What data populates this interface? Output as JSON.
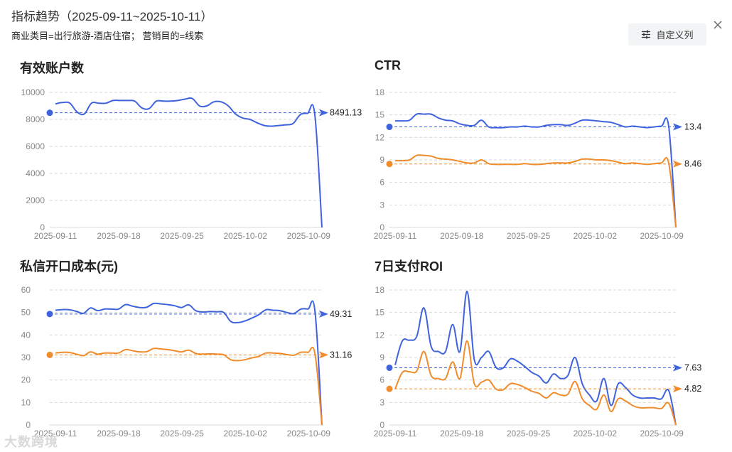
{
  "header": {
    "title": "指标趋势（2025-09-11~2025-10-11）",
    "subtitle": "商业类目=出行旅游-酒店住宿； 营销目的=线索",
    "custom_columns_label": "自定义列",
    "settings_icon": "sliders-icon",
    "close_icon": "close-icon"
  },
  "watermark": "大数跨境",
  "colors": {
    "blue": "#3e63dd",
    "orange": "#f08c2b",
    "grid": "#d9d9d9",
    "axis_text": "#888888"
  },
  "chart_data": [
    {
      "type": "line",
      "title": "有效账户数",
      "x_ticks": [
        "2025-09-11",
        "2025-09-18",
        "2025-09-25",
        "2025-10-02",
        "2025-10-09"
      ],
      "ylim": [
        0,
        10000
      ],
      "y_ticks": [
        0,
        2000,
        4000,
        6000,
        8000,
        10000
      ],
      "grid": true,
      "series": [
        {
          "color": "blue",
          "values": [
            9150,
            9250,
            9200,
            8550,
            8400,
            9200,
            9200,
            9200,
            9400,
            9400,
            9400,
            9350,
            8850,
            8800,
            9350,
            9350,
            9350,
            9400,
            9500,
            9550,
            9000,
            9000,
            9300,
            9300,
            9000,
            8400,
            8100,
            8000,
            7750,
            7550,
            7500,
            7550,
            7600,
            7700,
            8350,
            8450,
            8400,
            0
          ],
          "ref_value": 8491.13,
          "ref_label": "8491.13"
        }
      ]
    },
    {
      "type": "line",
      "title": "CTR",
      "x_ticks": [
        "2025-09-11",
        "2025-09-18",
        "2025-09-25",
        "2025-10-02",
        "2025-10-09"
      ],
      "ylim": [
        0,
        18
      ],
      "y_ticks": [
        0,
        3,
        6,
        9,
        12,
        15,
        18
      ],
      "grid": true,
      "series": [
        {
          "color": "blue",
          "values": [
            14.2,
            14.2,
            14.3,
            15.1,
            15.1,
            15.1,
            14.6,
            14.3,
            14.2,
            13.8,
            13.6,
            13.6,
            14.3,
            13.4,
            13.3,
            13.3,
            13.4,
            13.4,
            13.5,
            13.4,
            13.4,
            13.6,
            13.7,
            13.7,
            13.6,
            13.9,
            14.3,
            14.3,
            14.2,
            14.1,
            14.0,
            13.7,
            13.4,
            13.5,
            13.4,
            13.3,
            13.4,
            13.5,
            13.5,
            0
          ],
          "ref_value": 13.4,
          "ref_label": "13.4"
        },
        {
          "color": "orange",
          "values": [
            8.9,
            8.9,
            9.0,
            9.6,
            9.6,
            9.5,
            9.2,
            9.1,
            9.0,
            8.8,
            8.6,
            8.6,
            9.0,
            8.5,
            8.4,
            8.4,
            8.4,
            8.4,
            8.5,
            8.4,
            8.4,
            8.5,
            8.6,
            8.6,
            8.6,
            8.8,
            9.1,
            9.1,
            9.0,
            9.0,
            8.9,
            8.7,
            8.5,
            8.6,
            8.5,
            8.4,
            8.5,
            8.6,
            8.6,
            0
          ],
          "ref_value": 8.46,
          "ref_label": "8.46"
        }
      ]
    },
    {
      "type": "line",
      "title": "私信开口成本(元)",
      "x_ticks": [
        "2025-09-11",
        "2025-09-18",
        "2025-09-25",
        "2025-10-02",
        "2025-10-09"
      ],
      "ylim": [
        0,
        60
      ],
      "y_ticks": [
        0,
        10,
        20,
        30,
        40,
        50,
        60
      ],
      "grid": true,
      "series": [
        {
          "color": "blue",
          "values": [
            51.0,
            51.3,
            51.2,
            50.5,
            49.6,
            52.0,
            50.8,
            51.5,
            51.5,
            51.5,
            53.5,
            52.8,
            52.2,
            52.3,
            54.0,
            53.8,
            53.5,
            53.0,
            52.2,
            53.4,
            50.8,
            50.2,
            50.4,
            50.3,
            50.0,
            46.0,
            45.5,
            46.2,
            47.5,
            49.0,
            51.2,
            51.0,
            50.8,
            50.0,
            49.5,
            51.5,
            51.5,
            50.8,
            0
          ],
          "ref_value": 49.31,
          "ref_label": "49.31"
        },
        {
          "color": "orange",
          "values": [
            32.0,
            32.3,
            32.2,
            31.5,
            30.8,
            32.5,
            31.5,
            32.0,
            32.0,
            32.0,
            33.5,
            33.0,
            32.5,
            32.6,
            34.0,
            33.8,
            33.5,
            33.0,
            32.5,
            33.3,
            31.8,
            31.5,
            31.6,
            31.5,
            31.2,
            29.0,
            28.6,
            29.0,
            29.8,
            30.5,
            32.0,
            32.0,
            31.8,
            31.3,
            31.0,
            32.3,
            32.3,
            31.8,
            0
          ],
          "ref_value": 31.16,
          "ref_label": "31.16"
        }
      ]
    },
    {
      "type": "line",
      "title": "7日支付ROI",
      "x_ticks": [
        "2025-09-11",
        "2025-09-18",
        "2025-09-25",
        "2025-10-02",
        "2025-10-09"
      ],
      "ylim": [
        0,
        18
      ],
      "y_ticks": [
        0,
        3,
        6,
        9,
        12,
        15,
        18
      ],
      "grid": true,
      "series": [
        {
          "color": "blue",
          "values": [
            8.0,
            11.2,
            11.3,
            11.8,
            15.6,
            10.5,
            9.8,
            9.8,
            13.4,
            9.8,
            17.8,
            8.7,
            9.0,
            9.8,
            7.7,
            7.6,
            8.8,
            8.5,
            7.8,
            7.0,
            6.5,
            5.6,
            6.8,
            6.2,
            6.6,
            9.0,
            5.5,
            4.0,
            3.2,
            6.2,
            2.6,
            5.5,
            5.0,
            4.0,
            3.6,
            3.6,
            3.6,
            3.5,
            4.6,
            0
          ],
          "ref_value": 7.63,
          "ref_label": "7.63"
        },
        {
          "color": "orange",
          "values": [
            4.8,
            7.0,
            7.1,
            7.2,
            9.8,
            6.6,
            6.2,
            6.2,
            8.4,
            6.2,
            11.2,
            5.5,
            5.7,
            6.0,
            4.8,
            4.7,
            5.5,
            5.4,
            5.0,
            4.5,
            4.2,
            3.6,
            4.3,
            4.0,
            4.1,
            5.8,
            3.5,
            2.6,
            2.1,
            4.0,
            1.8,
            3.5,
            3.2,
            2.6,
            2.3,
            2.3,
            2.3,
            2.2,
            2.9,
            0
          ],
          "ref_value": 4.82,
          "ref_label": "4.82"
        }
      ]
    }
  ]
}
